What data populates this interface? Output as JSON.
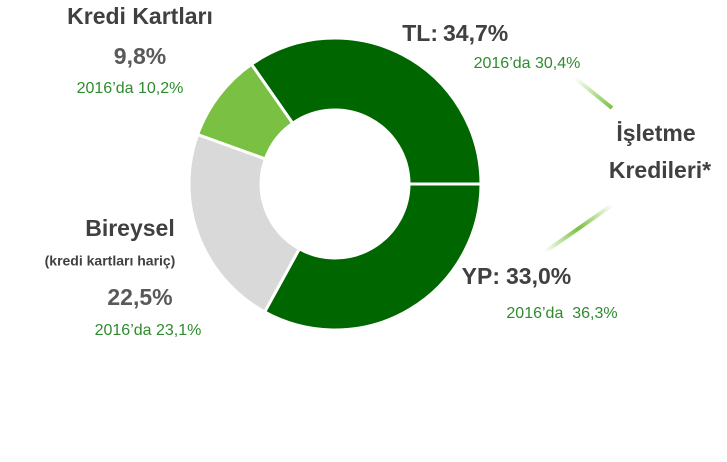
{
  "chart_data": {
    "type": "donut",
    "categories": [
      "TL:",
      "YP:",
      "Bireysel",
      "Kredi Kartları"
    ],
    "values": [
      34.7,
      33.0,
      22.5,
      9.8
    ],
    "value_labels": [
      "34,7%",
      "33,0%",
      "22,5%",
      "9,8%"
    ],
    "colors": [
      "#006600",
      "#006600",
      "#d9d9d9",
      "#7ac143"
    ],
    "comparisons": [
      "2016’da 30,4%",
      "2016’da  36,3%",
      "2016’da 23,1%",
      "2016’da 10,2%"
    ],
    "annotations": {
      "group_label": [
        "İşletme",
        "Kredileri*"
      ],
      "bireysel_note": "(kredi kartları hariç)"
    }
  }
}
